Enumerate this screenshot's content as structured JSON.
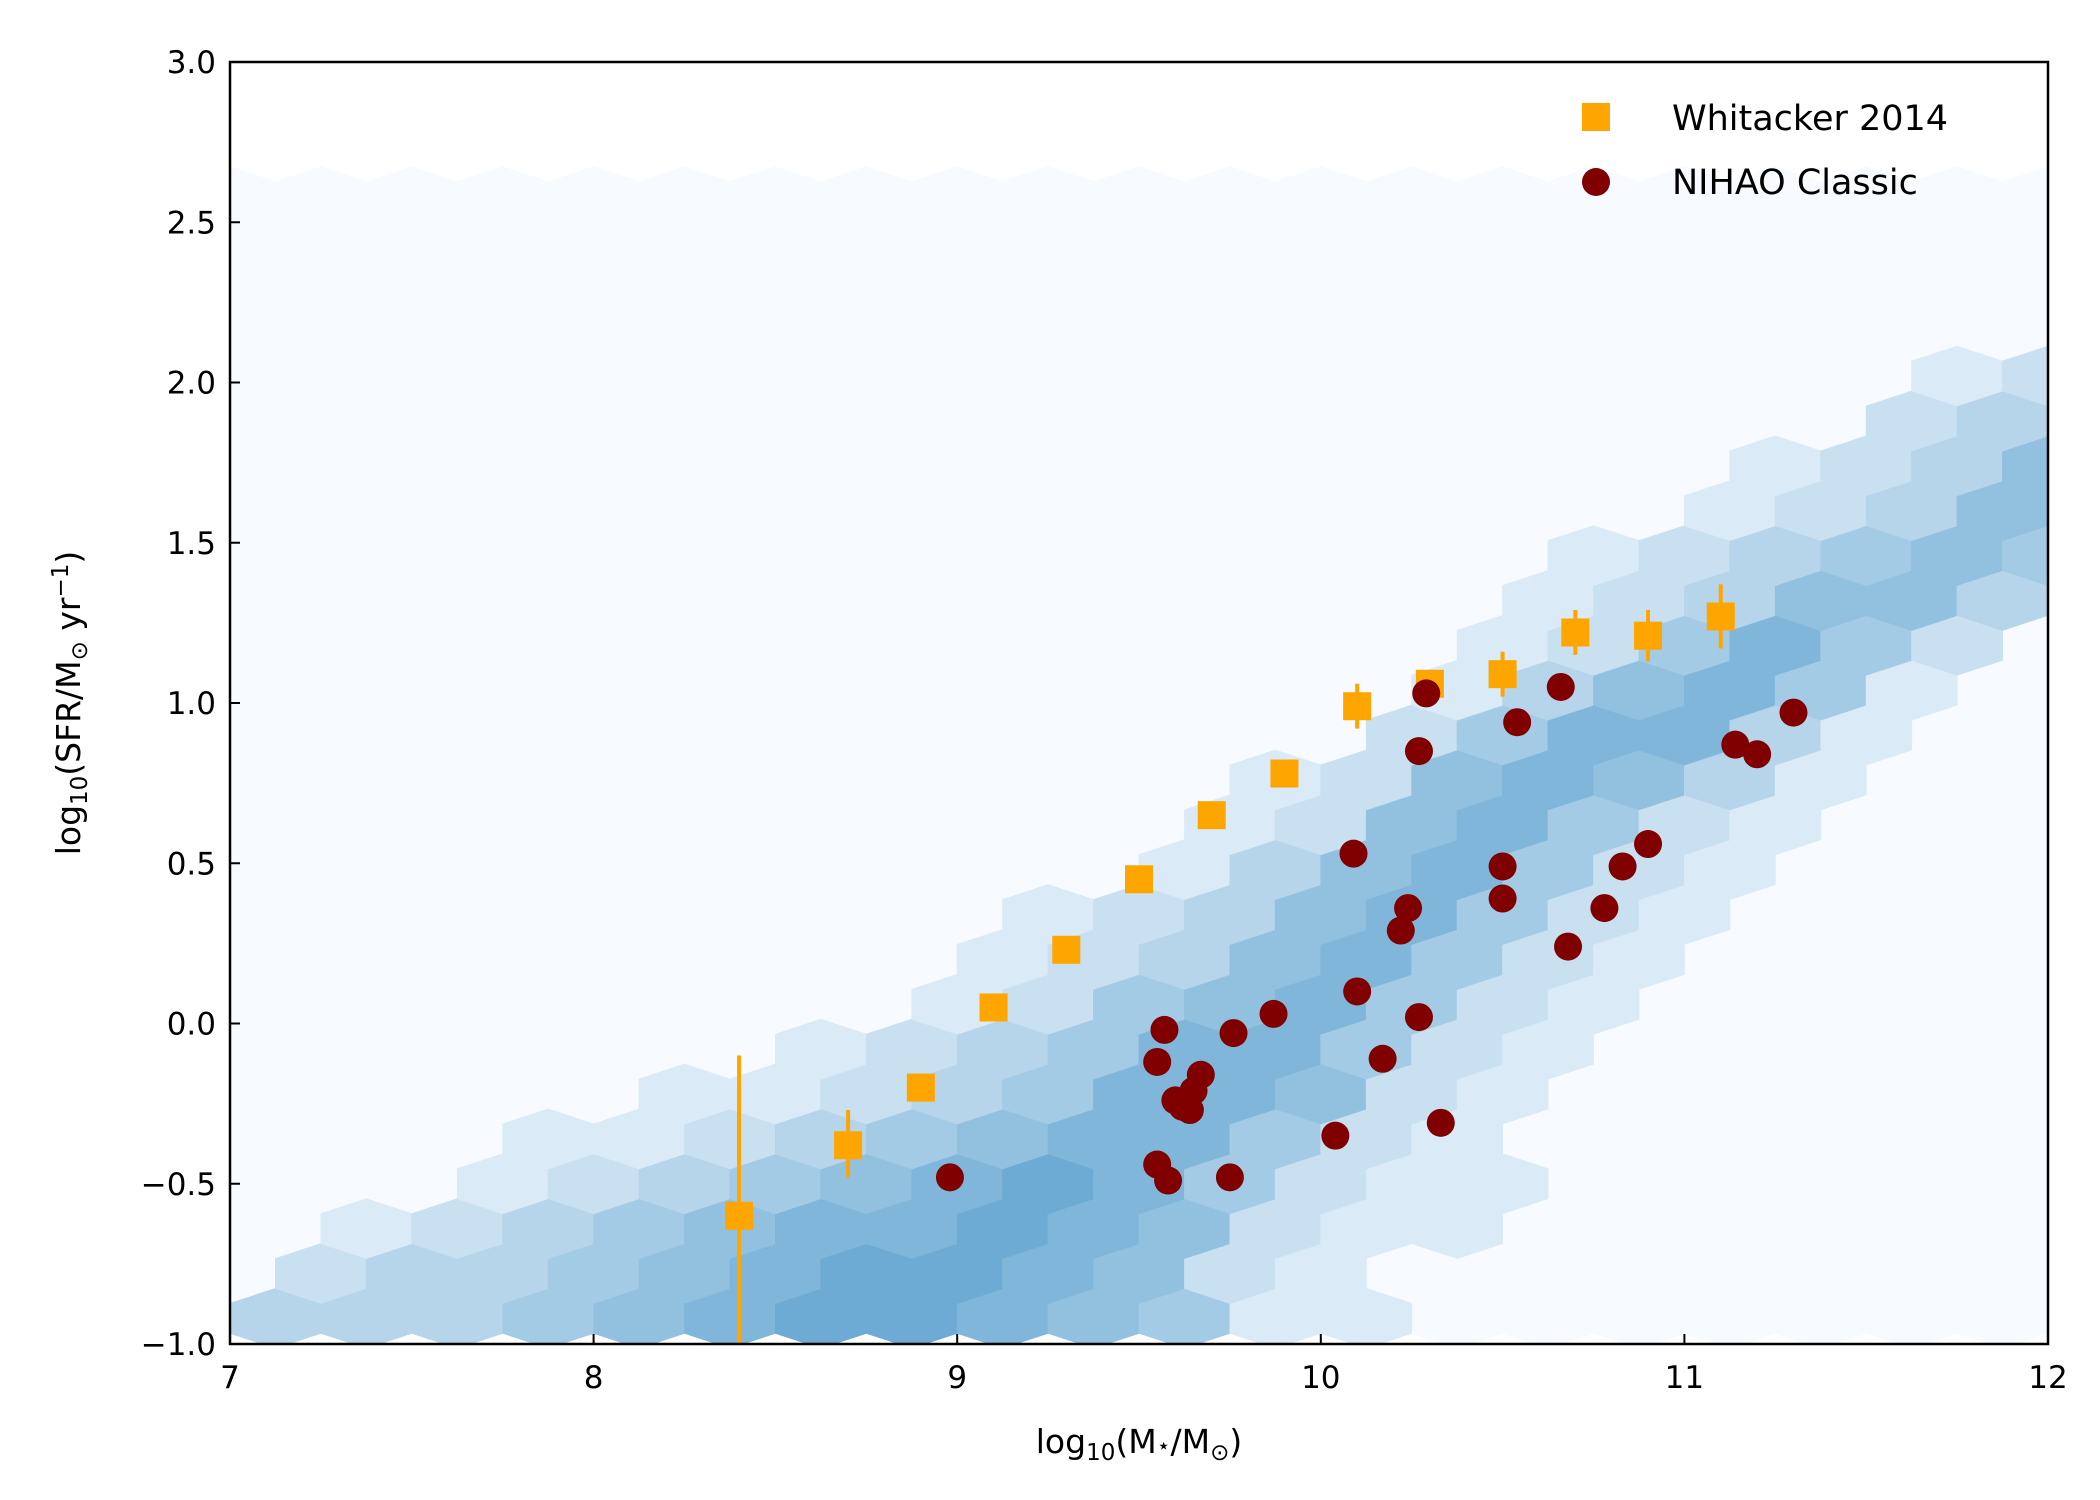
{
  "chart_data": {
    "type": "scatter",
    "xlabel_parts": [
      "log",
      "10",
      "(M",
      "⋆",
      "/M",
      "⊙",
      ")"
    ],
    "ylabel_parts": [
      "log",
      "10",
      "(SFR/M",
      "⊙",
      " yr",
      "−1",
      ")"
    ],
    "xlim": [
      7,
      12
    ],
    "ylim": [
      -1.0,
      3.0
    ],
    "x_ticks": [
      7,
      8,
      9,
      10,
      11,
      12
    ],
    "x_tick_labels": [
      "7",
      "8",
      "9",
      "10",
      "11",
      "12"
    ],
    "y_ticks": [
      -1.0,
      -0.5,
      0.0,
      0.5,
      1.0,
      1.5,
      2.0,
      2.5,
      3.0
    ],
    "y_tick_labels": [
      "−1.0",
      "−0.5",
      "0.0",
      "0.5",
      "1.0",
      "1.5",
      "2.0",
      "2.5",
      "3.0"
    ],
    "legend_position": "top-right",
    "colors": {
      "whitacker": "#ffa500",
      "nihao": "#800000",
      "hex_low": "#f7fbff",
      "hex_high": "#4292c6"
    },
    "series": [
      {
        "name": "Whitacker 2014",
        "marker": "square",
        "points": [
          {
            "x": 8.4,
            "y": -0.6,
            "yerr_low": 0.4,
            "yerr_high": 0.5
          },
          {
            "x": 8.7,
            "y": -0.38,
            "yerr_low": 0.1,
            "yerr_high": 0.11
          },
          {
            "x": 8.9,
            "y": -0.2,
            "yerr_low": 0.03,
            "yerr_high": 0.03
          },
          {
            "x": 9.1,
            "y": 0.05,
            "yerr_low": 0.0,
            "yerr_high": 0.0
          },
          {
            "x": 9.3,
            "y": 0.23,
            "yerr_low": 0.0,
            "yerr_high": 0.0
          },
          {
            "x": 9.5,
            "y": 0.45,
            "yerr_low": 0.0,
            "yerr_high": 0.0
          },
          {
            "x": 9.7,
            "y": 0.65,
            "yerr_low": 0.0,
            "yerr_high": 0.0
          },
          {
            "x": 9.9,
            "y": 0.78,
            "yerr_low": 0.0,
            "yerr_high": 0.0
          },
          {
            "x": 10.1,
            "y": 0.99,
            "yerr_low": 0.07,
            "yerr_high": 0.07
          },
          {
            "x": 10.3,
            "y": 1.06,
            "yerr_low": 0.04,
            "yerr_high": 0.04
          },
          {
            "x": 10.5,
            "y": 1.09,
            "yerr_low": 0.07,
            "yerr_high": 0.07
          },
          {
            "x": 10.7,
            "y": 1.22,
            "yerr_low": 0.07,
            "yerr_high": 0.07
          },
          {
            "x": 10.9,
            "y": 1.21,
            "yerr_low": 0.08,
            "yerr_high": 0.08
          },
          {
            "x": 11.1,
            "y": 1.27,
            "yerr_low": 0.1,
            "yerr_high": 0.1
          }
        ]
      },
      {
        "name": "NIHAO Classic",
        "marker": "circle",
        "points": [
          {
            "x": 8.98,
            "y": -0.48
          },
          {
            "x": 9.55,
            "y": -0.44
          },
          {
            "x": 9.58,
            "y": -0.49
          },
          {
            "x": 9.55,
            "y": -0.12
          },
          {
            "x": 9.57,
            "y": -0.02
          },
          {
            "x": 9.6,
            "y": -0.24
          },
          {
            "x": 9.62,
            "y": -0.26
          },
          {
            "x": 9.64,
            "y": -0.27
          },
          {
            "x": 9.65,
            "y": -0.21
          },
          {
            "x": 9.67,
            "y": -0.16
          },
          {
            "x": 9.75,
            "y": -0.48
          },
          {
            "x": 9.76,
            "y": -0.03
          },
          {
            "x": 9.87,
            "y": 0.03
          },
          {
            "x": 10.04,
            "y": -0.35
          },
          {
            "x": 10.09,
            "y": 0.53
          },
          {
            "x": 10.1,
            "y": 0.1
          },
          {
            "x": 10.17,
            "y": -0.11
          },
          {
            "x": 10.22,
            "y": 0.29
          },
          {
            "x": 10.24,
            "y": 0.36
          },
          {
            "x": 10.27,
            "y": 0.02
          },
          {
            "x": 10.27,
            "y": 0.85
          },
          {
            "x": 10.29,
            "y": 1.03
          },
          {
            "x": 10.33,
            "y": -0.31
          },
          {
            "x": 10.5,
            "y": 0.49
          },
          {
            "x": 10.5,
            "y": 0.39
          },
          {
            "x": 10.54,
            "y": 0.94
          },
          {
            "x": 10.66,
            "y": 1.05
          },
          {
            "x": 10.68,
            "y": 0.24
          },
          {
            "x": 10.78,
            "y": 0.36
          },
          {
            "x": 10.83,
            "y": 0.49
          },
          {
            "x": 10.9,
            "y": 0.56
          },
          {
            "x": 11.14,
            "y": 0.87
          },
          {
            "x": 11.2,
            "y": 0.84
          },
          {
            "x": 11.3,
            "y": 0.97
          }
        ]
      }
    ],
    "hexbin": {
      "description_free": true,
      "min_count": 0,
      "max_count": 10,
      "rows": [
        {
          "y": -0.92,
          "cells": [
            [
              7.125,
              3
            ],
            [
              7.375,
              3
            ],
            [
              7.625,
              3
            ],
            [
              7.875,
              4
            ],
            [
              8.125,
              5
            ],
            [
              8.375,
              6
            ],
            [
              8.625,
              7
            ],
            [
              8.875,
              7
            ],
            [
              9.125,
              6
            ],
            [
              9.375,
              5
            ],
            [
              9.625,
              4
            ],
            [
              9.875,
              1
            ],
            [
              10.125,
              1
            ]
          ]
        },
        {
          "y": -0.78,
          "cells": [
            [
              7.25,
              2
            ],
            [
              7.5,
              3
            ],
            [
              7.75,
              3
            ],
            [
              8.0,
              4
            ],
            [
              8.25,
              5
            ],
            [
              8.5,
              6
            ],
            [
              8.75,
              7
            ],
            [
              9.0,
              7
            ],
            [
              9.25,
              6
            ],
            [
              9.5,
              5
            ],
            [
              9.75,
              2
            ],
            [
              10.0,
              1
            ]
          ]
        },
        {
          "y": -0.64,
          "cells": [
            [
              7.375,
              1
            ],
            [
              7.625,
              2
            ],
            [
              7.875,
              3
            ],
            [
              8.125,
              4
            ],
            [
              8.375,
              5
            ],
            [
              8.625,
              6
            ],
            [
              8.875,
              6
            ],
            [
              9.125,
              7
            ],
            [
              9.375,
              6
            ],
            [
              9.625,
              5
            ],
            [
              9.875,
              2
            ],
            [
              10.125,
              1
            ],
            [
              10.375,
              1
            ]
          ]
        },
        {
          "y": -0.5,
          "cells": [
            [
              7.75,
              1
            ],
            [
              8.0,
              2
            ],
            [
              8.25,
              3
            ],
            [
              8.5,
              4
            ],
            [
              8.75,
              5
            ],
            [
              9.0,
              6
            ],
            [
              9.25,
              7
            ],
            [
              9.5,
              6
            ],
            [
              9.75,
              4
            ],
            [
              10.0,
              2
            ],
            [
              10.25,
              1
            ],
            [
              10.5,
              1
            ]
          ]
        },
        {
          "y": -0.36,
          "cells": [
            [
              7.875,
              1
            ],
            [
              8.125,
              1
            ],
            [
              8.375,
              2
            ],
            [
              8.625,
              3
            ],
            [
              8.875,
              4
            ],
            [
              9.125,
              5
            ],
            [
              9.375,
              6
            ],
            [
              9.625,
              6
            ],
            [
              9.875,
              4
            ],
            [
              10.125,
              2
            ],
            [
              10.375,
              1
            ]
          ]
        },
        {
          "y": -0.22,
          "cells": [
            [
              8.25,
              1
            ],
            [
              8.5,
              1
            ],
            [
              8.75,
              2
            ],
            [
              9.0,
              3
            ],
            [
              9.25,
              4
            ],
            [
              9.5,
              6
            ],
            [
              9.75,
              6
            ],
            [
              10.0,
              5
            ],
            [
              10.25,
              2
            ],
            [
              10.5,
              1
            ]
          ]
        },
        {
          "y": -0.08,
          "cells": [
            [
              8.625,
              1
            ],
            [
              8.875,
              2
            ],
            [
              9.125,
              3
            ],
            [
              9.375,
              4
            ],
            [
              9.625,
              6
            ],
            [
              9.875,
              6
            ],
            [
              10.125,
              4
            ],
            [
              10.375,
              2
            ],
            [
              10.625,
              1
            ]
          ]
        },
        {
          "y": 0.06,
          "cells": [
            [
              9.0,
              1
            ],
            [
              9.25,
              2
            ],
            [
              9.5,
              4
            ],
            [
              9.75,
              5
            ],
            [
              10.0,
              6
            ],
            [
              10.25,
              4
            ],
            [
              10.5,
              2
            ],
            [
              10.75,
              1
            ]
          ]
        },
        {
          "y": 0.2,
          "cells": [
            [
              9.125,
              1
            ],
            [
              9.375,
              2
            ],
            [
              9.625,
              3
            ],
            [
              9.875,
              5
            ],
            [
              10.125,
              6
            ],
            [
              10.375,
              4
            ],
            [
              10.625,
              2
            ],
            [
              10.875,
              1
            ]
          ]
        },
        {
          "y": 0.34,
          "cells": [
            [
              9.25,
              1
            ],
            [
              9.5,
              2
            ],
            [
              9.75,
              3
            ],
            [
              10.0,
              5
            ],
            [
              10.25,
              6
            ],
            [
              10.5,
              4
            ],
            [
              10.75,
              2
            ],
            [
              11.0,
              1
            ]
          ]
        },
        {
          "y": 0.48,
          "cells": [
            [
              9.625,
              1
            ],
            [
              9.875,
              3
            ],
            [
              10.125,
              5
            ],
            [
              10.375,
              6
            ],
            [
              10.625,
              4
            ],
            [
              10.875,
              2
            ],
            [
              11.125,
              1
            ]
          ]
        },
        {
          "y": 0.62,
          "cells": [
            [
              9.75,
              1
            ],
            [
              10.0,
              2
            ],
            [
              10.25,
              5
            ],
            [
              10.5,
              6
            ],
            [
              10.75,
              4
            ],
            [
              11.0,
              2
            ],
            [
              11.25,
              1
            ]
          ]
        },
        {
          "y": 0.76,
          "cells": [
            [
              9.875,
              1
            ],
            [
              10.125,
              2
            ],
            [
              10.375,
              5
            ],
            [
              10.625,
              6
            ],
            [
              10.875,
              5
            ],
            [
              11.125,
              3
            ],
            [
              11.375,
              1
            ]
          ]
        },
        {
          "y": 0.9,
          "cells": [
            [
              10.25,
              2
            ],
            [
              10.5,
              4
            ],
            [
              10.75,
              6
            ],
            [
              11.0,
              6
            ],
            [
              11.25,
              3
            ],
            [
              11.5,
              1
            ]
          ]
        },
        {
          "y": 1.04,
          "cells": [
            [
              10.375,
              1
            ],
            [
              10.625,
              3
            ],
            [
              10.875,
              5
            ],
            [
              11.125,
              6
            ],
            [
              11.375,
              4
            ],
            [
              11.625,
              1
            ]
          ]
        },
        {
          "y": 1.18,
          "cells": [
            [
              10.5,
              1
            ],
            [
              10.75,
              2
            ],
            [
              11.0,
              4
            ],
            [
              11.25,
              6
            ],
            [
              11.5,
              4
            ],
            [
              11.75,
              2
            ]
          ]
        },
        {
          "y": 1.32,
          "cells": [
            [
              10.625,
              1
            ],
            [
              10.875,
              2
            ],
            [
              11.125,
              3
            ],
            [
              11.375,
              5
            ],
            [
              11.625,
              5
            ],
            [
              11.875,
              3
            ]
          ]
        },
        {
          "y": 1.46,
          "cells": [
            [
              10.75,
              1
            ],
            [
              11.0,
              2
            ],
            [
              11.25,
              3
            ],
            [
              11.5,
              4
            ],
            [
              11.75,
              5
            ],
            [
              12.0,
              4
            ]
          ]
        },
        {
          "y": 1.6,
          "cells": [
            [
              11.125,
              1
            ],
            [
              11.375,
              2
            ],
            [
              11.625,
              3
            ],
            [
              11.875,
              5
            ]
          ]
        },
        {
          "y": 1.74,
          "cells": [
            [
              11.25,
              1
            ],
            [
              11.5,
              2
            ],
            [
              11.75,
              3
            ],
            [
              12.0,
              5
            ]
          ]
        },
        {
          "y": 1.88,
          "cells": [
            [
              11.625,
              2
            ],
            [
              11.875,
              3
            ]
          ]
        },
        {
          "y": 2.02,
          "cells": [
            [
              11.75,
              1
            ],
            [
              12.0,
              2
            ]
          ]
        }
      ],
      "background_y_max": 2.62
    }
  }
}
